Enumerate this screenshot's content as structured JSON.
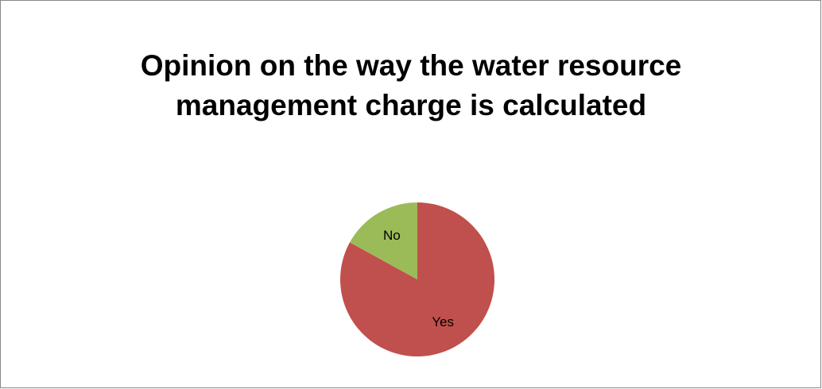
{
  "chart_data": {
    "type": "pie",
    "title": "Opinion on the way the water resource management charge is calculated",
    "categories": [
      "Yes",
      "No"
    ],
    "values": [
      83,
      17
    ],
    "colors": [
      "#c0504d",
      "#9bbb59"
    ]
  }
}
